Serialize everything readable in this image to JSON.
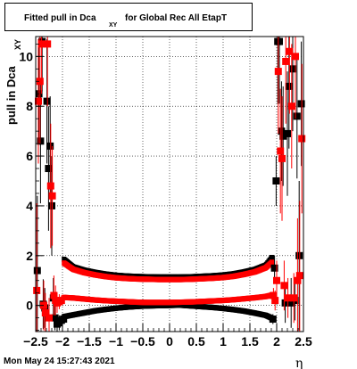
{
  "chart_data": {
    "type": "scatter",
    "title_main": "Fitted pull in Dca",
    "title_sub": "XY",
    "title_rest": "for Global Rec All EtapT",
    "ylabel_main": "pull in Dca",
    "ylabel_sub": "XY",
    "xlabel": "η",
    "xlim": [
      -2.5,
      2.5
    ],
    "ylim": [
      -1.05,
      10.8
    ],
    "x_ticks": [
      "−2.5",
      "−2",
      "−1.5",
      "−1",
      "−0.5",
      "0",
      "0.5",
      "1",
      "1.5",
      "2",
      "2.5"
    ],
    "x_tick_values": [
      -2.5,
      -2,
      -1.5,
      -1,
      -0.5,
      0,
      0.5,
      1,
      1.5,
      2,
      2.5
    ],
    "y_ticks": [
      "0",
      "2",
      "4",
      "6",
      "8",
      "10"
    ],
    "y_tick_values": [
      0,
      2,
      4,
      6,
      8,
      10
    ],
    "grid": true,
    "series": [
      {
        "color": "#000000",
        "points": [
          {
            "x": -2.47,
            "y": 1.4,
            "e": 3.0
          },
          {
            "x": -2.44,
            "y": 8.5,
            "e": 2.0
          },
          {
            "x": -2.41,
            "y": 6.6,
            "e": 2.5
          },
          {
            "x": -2.38,
            "y": 10.6,
            "e": 2.0
          },
          {
            "x": -2.36,
            "y": 0.05,
            "e": 1.0
          },
          {
            "x": -2.33,
            "y": -0.1,
            "e": 0.8
          },
          {
            "x": -2.29,
            "y": 8.2,
            "e": 2.5
          },
          {
            "x": -2.26,
            "y": 5.5,
            "e": 2.5
          },
          {
            "x": -2.23,
            "y": 6.4,
            "e": 2.0
          },
          {
            "x": -2.2,
            "y": 4.0,
            "e": 2.0
          },
          {
            "x": -2.17,
            "y": 0.3,
            "e": 0.8
          },
          {
            "x": -2.14,
            "y": -0.5,
            "e": 0.5
          },
          {
            "x": -2.1,
            "y": -0.75,
            "e": 0.3
          },
          {
            "x": -2.06,
            "y": -0.7,
            "e": 0.3
          },
          {
            "x": -2.02,
            "y": -0.6,
            "e": 0.2
          },
          {
            "x": -1.98,
            "y": -0.55,
            "e": 0.1
          },
          {
            "x": 1.93,
            "y": -0.55,
            "e": 0.2
          },
          {
            "x": 1.96,
            "y": 1.5,
            "e": 0.5
          },
          {
            "x": 1.99,
            "y": 5.0,
            "e": 1.0
          },
          {
            "x": 2.02,
            "y": 10.6,
            "e": 2.5
          },
          {
            "x": 2.05,
            "y": 10.6,
            "e": 2.5
          },
          {
            "x": 2.09,
            "y": 7.0,
            "e": 2.0
          },
          {
            "x": 2.12,
            "y": 6.8,
            "e": 2.0
          },
          {
            "x": 2.16,
            "y": 0.1,
            "e": 0.8
          },
          {
            "x": 2.2,
            "y": 6.9,
            "e": 2.5
          },
          {
            "x": 2.23,
            "y": 8.8,
            "e": 2.5
          },
          {
            "x": 2.27,
            "y": 0.1,
            "e": 1.0
          },
          {
            "x": 2.3,
            "y": 9.5,
            "e": 2.5
          },
          {
            "x": 2.34,
            "y": 0.2,
            "e": 0.8
          },
          {
            "x": 2.38,
            "y": 7.6,
            "e": 2.5
          },
          {
            "x": 2.42,
            "y": 2.0,
            "e": 3.0
          },
          {
            "x": 2.46,
            "y": 8.1,
            "e": 2.5
          }
        ],
        "upper_band": [
          [
            -1.97,
            1.85
          ],
          [
            -1.8,
            1.55
          ],
          [
            -1.6,
            1.42
          ],
          [
            -1.4,
            1.33
          ],
          [
            -1.2,
            1.26
          ],
          [
            -1.0,
            1.21
          ],
          [
            -0.8,
            1.18
          ],
          [
            -0.6,
            1.16
          ],
          [
            -0.4,
            1.15
          ],
          [
            -0.2,
            1.14
          ],
          [
            0.0,
            1.14
          ],
          [
            0.2,
            1.14
          ],
          [
            0.4,
            1.15
          ],
          [
            0.6,
            1.17
          ],
          [
            0.8,
            1.19
          ],
          [
            1.0,
            1.22
          ],
          [
            1.2,
            1.27
          ],
          [
            1.4,
            1.35
          ],
          [
            1.6,
            1.45
          ],
          [
            1.8,
            1.62
          ],
          [
            1.92,
            1.95
          ]
        ],
        "lower_band": [
          [
            -1.97,
            -0.45
          ],
          [
            -1.8,
            -0.38
          ],
          [
            -1.6,
            -0.3
          ],
          [
            -1.4,
            -0.22
          ],
          [
            -1.2,
            -0.16
          ],
          [
            -1.0,
            -0.11
          ],
          [
            -0.8,
            -0.07
          ],
          [
            -0.6,
            -0.04
          ],
          [
            -0.4,
            -0.02
          ],
          [
            -0.2,
            -0.01
          ],
          [
            0.0,
            0.0
          ],
          [
            0.2,
            0.01
          ],
          [
            0.4,
            -0.02
          ],
          [
            0.6,
            -0.05
          ],
          [
            0.8,
            -0.08
          ],
          [
            1.0,
            -0.12
          ],
          [
            1.2,
            -0.17
          ],
          [
            1.4,
            -0.23
          ],
          [
            1.6,
            -0.31
          ],
          [
            1.8,
            -0.4
          ],
          [
            1.92,
            -0.52
          ]
        ]
      },
      {
        "color": "#ff0000",
        "points": [
          {
            "x": -2.48,
            "y": 0.6,
            "e": 3.5
          },
          {
            "x": -2.45,
            "y": 8.2,
            "e": 2.5
          },
          {
            "x": -2.42,
            "y": 9.0,
            "e": 2.5
          },
          {
            "x": -2.39,
            "y": 10.5,
            "e": 2.0
          },
          {
            "x": -2.35,
            "y": 0.0,
            "e": 1.0
          },
          {
            "x": -2.32,
            "y": -0.3,
            "e": 0.8
          },
          {
            "x": -2.28,
            "y": 10.5,
            "e": 2.5
          },
          {
            "x": -2.25,
            "y": -0.5,
            "e": 0.8
          },
          {
            "x": -2.22,
            "y": 4.8,
            "e": 2.5
          },
          {
            "x": -2.19,
            "y": 4.4,
            "e": 2.0
          },
          {
            "x": -2.16,
            "y": 0.4,
            "e": 0.8
          },
          {
            "x": -2.13,
            "y": 0.2,
            "e": 0.6
          },
          {
            "x": -2.1,
            "y": 0.1,
            "e": 0.4
          },
          {
            "x": -2.06,
            "y": 0.15,
            "e": 0.3
          },
          {
            "x": -2.02,
            "y": 0.2,
            "e": 0.2
          },
          {
            "x": 1.94,
            "y": 0.4,
            "e": 0.3
          },
          {
            "x": 1.97,
            "y": 0.2,
            "e": 0.4
          },
          {
            "x": 2.0,
            "y": 1.0,
            "e": 0.8
          },
          {
            "x": 2.03,
            "y": 9.4,
            "e": 2.5
          },
          {
            "x": 2.07,
            "y": 6.2,
            "e": 2.5
          },
          {
            "x": 2.1,
            "y": 5.9,
            "e": 2.5
          },
          {
            "x": 2.14,
            "y": 0.8,
            "e": 1.0
          },
          {
            "x": 2.17,
            "y": 9.8,
            "e": 2.5
          },
          {
            "x": 2.21,
            "y": 0.3,
            "e": 0.8
          },
          {
            "x": 2.24,
            "y": 10.2,
            "e": 2.5
          },
          {
            "x": 2.28,
            "y": 8.0,
            "e": 2.5
          },
          {
            "x": 2.32,
            "y": 0.3,
            "e": 1.0
          },
          {
            "x": 2.35,
            "y": 10.0,
            "e": 2.5
          },
          {
            "x": 2.39,
            "y": 1.0,
            "e": 2.5
          },
          {
            "x": 2.43,
            "y": 1.2,
            "e": 3.0
          },
          {
            "x": 2.47,
            "y": 6.7,
            "e": 3.0
          }
        ],
        "upper_band": [
          [
            -1.97,
            1.7
          ],
          [
            -1.8,
            1.45
          ],
          [
            -1.6,
            1.32
          ],
          [
            -1.4,
            1.23
          ],
          [
            -1.2,
            1.16
          ],
          [
            -1.0,
            1.11
          ],
          [
            -0.8,
            1.08
          ],
          [
            -0.6,
            1.06
          ],
          [
            -0.4,
            1.05
          ],
          [
            -0.2,
            1.04
          ],
          [
            0.0,
            1.04
          ],
          [
            0.2,
            1.04
          ],
          [
            0.4,
            1.05
          ],
          [
            0.6,
            1.07
          ],
          [
            0.8,
            1.09
          ],
          [
            1.0,
            1.12
          ],
          [
            1.2,
            1.17
          ],
          [
            1.4,
            1.25
          ],
          [
            1.6,
            1.35
          ],
          [
            1.8,
            1.52
          ],
          [
            1.92,
            1.75
          ]
        ],
        "lower_band": [
          [
            -1.97,
            0.32
          ],
          [
            -1.8,
            0.3
          ],
          [
            -1.6,
            0.26
          ],
          [
            -1.4,
            0.22
          ],
          [
            -1.2,
            0.19
          ],
          [
            -1.0,
            0.17
          ],
          [
            -0.8,
            0.15
          ],
          [
            -0.6,
            0.13
          ],
          [
            -0.4,
            0.12
          ],
          [
            -0.2,
            0.12
          ],
          [
            0.0,
            0.12
          ],
          [
            0.2,
            0.13
          ],
          [
            0.4,
            0.14
          ],
          [
            0.6,
            0.16
          ],
          [
            0.8,
            0.18
          ],
          [
            1.0,
            0.2
          ],
          [
            1.2,
            0.23
          ],
          [
            1.4,
            0.27
          ],
          [
            1.6,
            0.31
          ],
          [
            1.8,
            0.36
          ],
          [
            1.92,
            0.42
          ]
        ]
      }
    ]
  },
  "footer": {
    "timestamp": "Mon May 24 15:27:43 2021"
  }
}
